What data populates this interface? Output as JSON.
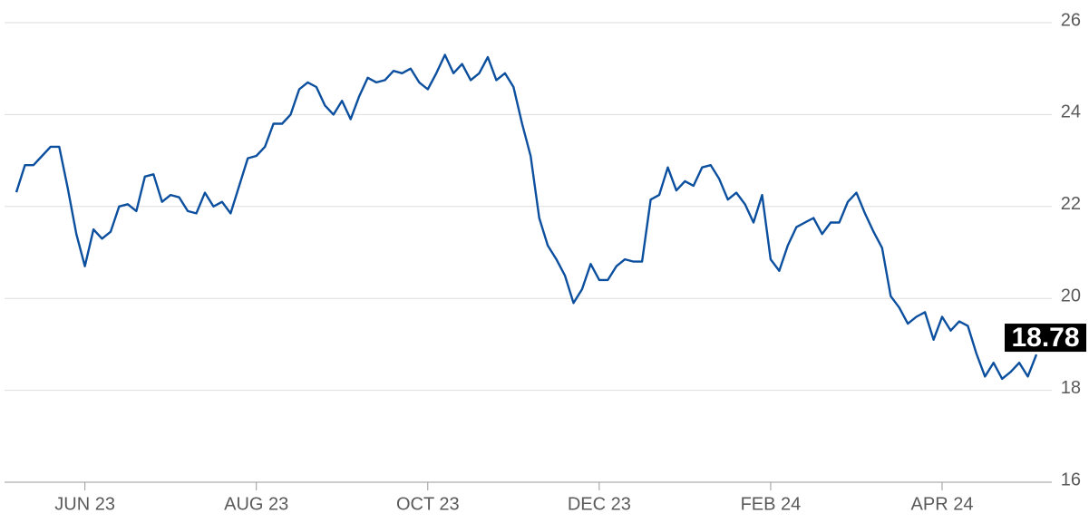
{
  "chart_data": {
    "type": "line",
    "color": "#0b4f9e",
    "grid": true,
    "categories": [
      null,
      null,
      null,
      null,
      null,
      null,
      null,
      null,
      "JUN 23",
      null,
      null,
      null,
      null,
      null,
      null,
      null,
      null,
      null,
      null,
      null,
      null,
      null,
      null,
      null,
      null,
      null,
      null,
      null,
      "AUG 23",
      null,
      null,
      null,
      null,
      null,
      null,
      null,
      null,
      null,
      null,
      null,
      null,
      null,
      null,
      null,
      null,
      null,
      null,
      null,
      "OCT 23",
      null,
      null,
      null,
      null,
      null,
      null,
      null,
      null,
      null,
      null,
      null,
      null,
      null,
      null,
      null,
      null,
      null,
      null,
      null,
      "DEC 23",
      null,
      null,
      null,
      null,
      null,
      null,
      null,
      null,
      null,
      null,
      null,
      null,
      null,
      null,
      null,
      null,
      null,
      null,
      null,
      "FEB 24",
      null,
      null,
      null,
      null,
      null,
      null,
      null,
      null,
      null,
      null,
      null,
      null,
      null,
      null,
      null,
      null,
      null,
      null,
      null,
      "APR 24",
      null,
      null,
      null,
      null,
      null,
      null,
      null,
      null,
      null,
      null,
      null
    ],
    "values": [
      22.31,
      22.9,
      22.9,
      23.1,
      23.3,
      23.3,
      22.4,
      21.4,
      20.7,
      21.5,
      21.3,
      21.45,
      22.0,
      22.05,
      21.9,
      22.65,
      22.7,
      22.1,
      22.25,
      22.2,
      21.9,
      21.85,
      22.3,
      22.0,
      22.1,
      21.85,
      22.45,
      23.05,
      23.1,
      23.3,
      23.8,
      23.8,
      24.0,
      24.55,
      24.7,
      24.6,
      24.2,
      24.0,
      24.3,
      23.9,
      24.4,
      24.8,
      24.7,
      24.75,
      24.95,
      24.9,
      25.0,
      24.7,
      24.55,
      24.9,
      25.3,
      24.9,
      25.1,
      24.75,
      24.9,
      25.25,
      24.75,
      24.9,
      24.6,
      23.8,
      23.1,
      21.75,
      21.15,
      20.85,
      20.5,
      19.9,
      20.2,
      20.75,
      20.4,
      20.4,
      20.7,
      20.85,
      20.8,
      20.8,
      22.15,
      22.25,
      22.85,
      22.35,
      22.55,
      22.45,
      22.85,
      22.9,
      22.6,
      22.15,
      22.3,
      22.05,
      21.65,
      22.25,
      20.85,
      20.6,
      21.15,
      21.55,
      21.65,
      21.75,
      21.4,
      21.65,
      21.65,
      22.1,
      22.3,
      21.85,
      21.45,
      21.1,
      20.05,
      19.8,
      19.45,
      19.6,
      19.7,
      19.1,
      19.6,
      19.3,
      19.5,
      19.4,
      18.8,
      18.3,
      18.6,
      18.25,
      18.4,
      18.6,
      18.3,
      18.78
    ],
    "ylim": [
      16,
      26
    ],
    "yticks": [
      16,
      18,
      20,
      22,
      24,
      26
    ]
  }
}
